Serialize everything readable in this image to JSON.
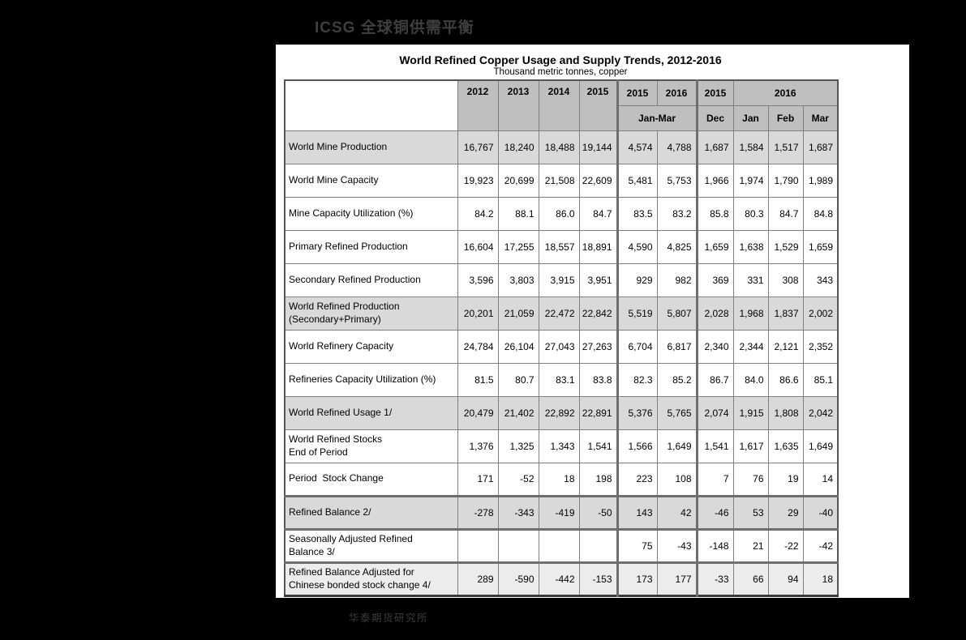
{
  "page": {
    "top_title": "ICSG 全球铜供需平衡",
    "footer": "华泰期货研究所"
  },
  "colors": {
    "background": "#000000",
    "panel": "#ffffff",
    "header_gray": "#bfbfbf",
    "row_gray": "#d9d9d9",
    "row_light": "#ececec",
    "blank_cell_gray": "#b9b9b9",
    "grid_border": "#7f7f7f"
  },
  "table": {
    "title": "World Refined Copper Usage and Supply Trends, 2012-2016",
    "subtitle": "Thousand metric tonnes, copper",
    "header": {
      "years_annual": [
        "2012",
        "2013",
        "2014",
        "2015"
      ],
      "qtr_years": [
        "2015",
        "2016"
      ],
      "qtr_label": "Jan-Mar",
      "dec_year": "2015",
      "dec_label": "Dec",
      "monthly_year": "2016",
      "months": [
        "Jan",
        "Feb",
        "Mar"
      ]
    },
    "rows": [
      {
        "label": "World Mine Production",
        "style": "gray",
        "values": [
          "16,767",
          "18,240",
          "18,488",
          "19,144",
          "4,574",
          "4,788",
          "1,687",
          "1,584",
          "1,517",
          "1,687"
        ]
      },
      {
        "label": "World Mine Capacity",
        "style": "white",
        "values": [
          "19,923",
          "20,699",
          "21,508",
          "22,609",
          "5,481",
          "5,753",
          "1,966",
          "1,974",
          "1,790",
          "1,989"
        ]
      },
      {
        "label": "Mine Capacity Utilization (%)",
        "style": "white",
        "values": [
          "84.2",
          "88.1",
          "86.0",
          "84.7",
          "83.5",
          "83.2",
          "85.8",
          "80.3",
          "84.7",
          "84.8"
        ]
      },
      {
        "label": "Primary Refined Production",
        "style": "white",
        "values": [
          "16,604",
          "17,255",
          "18,557",
          "18,891",
          "4,590",
          "4,825",
          "1,659",
          "1,638",
          "1,529",
          "1,659"
        ]
      },
      {
        "label": "Secondary Refined Production",
        "style": "white",
        "values": [
          "3,596",
          "3,803",
          "3,915",
          "3,951",
          "929",
          "982",
          "369",
          "331",
          "308",
          "343"
        ]
      },
      {
        "label": "World Refined Production\n(Secondary+Primary)",
        "style": "gray",
        "values": [
          "20,201",
          "21,059",
          "22,472",
          "22,842",
          "5,519",
          "5,807",
          "2,028",
          "1,968",
          "1,837",
          "2,002"
        ]
      },
      {
        "label": "World Refinery Capacity",
        "style": "white",
        "values": [
          "24,784",
          "26,104",
          "27,043",
          "27,263",
          "6,704",
          "6,817",
          "2,340",
          "2,344",
          "2,121",
          "2,352"
        ]
      },
      {
        "label": "Refineries Capacity Utilization (%)",
        "style": "white",
        "values": [
          "81.5",
          "80.7",
          "83.1",
          "83.8",
          "82.3",
          "85.2",
          "86.7",
          "84.0",
          "86.6",
          "85.1"
        ]
      },
      {
        "label": "World Refined Usage 1/",
        "style": "gray",
        "values": [
          "20,479",
          "21,402",
          "22,892",
          "22,891",
          "5,376",
          "5,765",
          "2,074",
          "1,915",
          "1,808",
          "2,042"
        ]
      },
      {
        "label": "World Refined Stocks\nEnd of Period",
        "style": "white",
        "values": [
          "1,376",
          "1,325",
          "1,343",
          "1,541",
          "1,566",
          "1,649",
          "1,541",
          "1,617",
          "1,635",
          "1,649"
        ]
      },
      {
        "label": "Period  Stock Change",
        "style": "white",
        "values": [
          "171",
          "-52",
          "18",
          "198",
          "223",
          "108",
          "7",
          "76",
          "19",
          "14"
        ]
      },
      {
        "label": "Refined Balance 2/",
        "style": "gray",
        "thick_top": true,
        "thick_bottom": true,
        "values": [
          "-278",
          "-343",
          "-419",
          "-50",
          "143",
          "42",
          "-46",
          "53",
          "29",
          "-40"
        ]
      },
      {
        "label": "Seasonally Adjusted Refined\nBalance 3/",
        "style": "white",
        "thick_bottom": true,
        "blank_cols": [
          0,
          1,
          2,
          3
        ],
        "values": [
          "",
          "",
          "",
          "",
          "75",
          "-43",
          "-148",
          "21",
          "-22",
          "-42"
        ]
      },
      {
        "label": "Refined Balance Adjusted for\nChinese bonded stock change 4/",
        "style": "light",
        "values": [
          "289",
          "-590",
          "-442",
          "-153",
          "173",
          "177",
          "-33",
          "66",
          "94",
          "18"
        ]
      }
    ]
  }
}
